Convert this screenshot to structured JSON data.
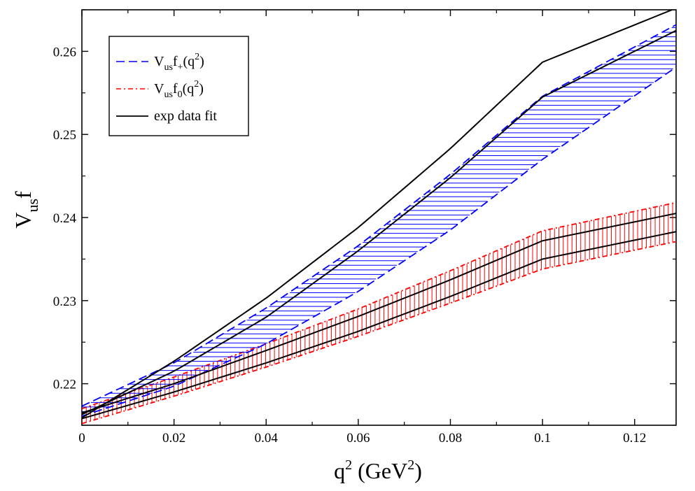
{
  "chart_data": {
    "type": "line",
    "title": "",
    "xlabel": {
      "base": "q",
      "sup": "2",
      "rest1": " (GeV",
      "sup2": "2",
      "rest2": ")"
    },
    "ylabel": {
      "base": "V",
      "sub": "us",
      "rest": "f"
    },
    "xlim": [
      0,
      0.129
    ],
    "ylim": [
      0.215,
      0.265
    ],
    "x_ticks": [
      0,
      0.02,
      0.04,
      0.06,
      0.08,
      0.1,
      0.12
    ],
    "x_tick_labels": [
      "0",
      "0.02",
      "0.04",
      "0.06",
      "0.08",
      "0.1",
      "0.12"
    ],
    "y_ticks": [
      0.22,
      0.23,
      0.24,
      0.25,
      0.26
    ],
    "y_tick_labels": [
      "0.22",
      "0.23",
      "0.24",
      "0.25",
      "0.26"
    ],
    "legend_position": "top-left",
    "x": [
      0,
      0.02,
      0.04,
      0.06,
      0.08,
      0.1,
      0.129
    ],
    "series": [
      {
        "name": "Vus f+(q2)",
        "legend": {
          "base": "V",
          "sub": "us",
          "mid": "f",
          "sub2": "+",
          "tail1": "(q",
          "sup": "2",
          "tail2": ")"
        },
        "color": "#0000ff",
        "style": "dashed",
        "hatch": "horizontal",
        "upper": [
          0.2173,
          0.2225,
          0.2291,
          0.2366,
          0.2452,
          0.2546,
          0.2632
        ],
        "lower": [
          0.2161,
          0.2197,
          0.2248,
          0.2311,
          0.2385,
          0.247,
          0.2581
        ]
      },
      {
        "name": "Vus f0(q2)",
        "legend": {
          "base": "V",
          "sub": "us",
          "mid": "f",
          "sub2": "0",
          "tail1": "(q",
          "sup": "2",
          "tail2": ")"
        },
        "color": "#ff0000",
        "style": "dash-dot",
        "hatch": "vertical",
        "upper": [
          0.217,
          0.2208,
          0.2248,
          0.229,
          0.2336,
          0.2384,
          0.2418
        ],
        "lower": [
          0.2152,
          0.2185,
          0.222,
          0.2257,
          0.2297,
          0.2338,
          0.2371
        ]
      },
      {
        "name": "exp data fit",
        "legend_text": "exp data fit",
        "color": "#000000",
        "style": "solid",
        "curves": [
          [
            0.2159,
            0.2227,
            0.2303,
            0.2388,
            0.2483,
            0.2587,
            0.2652
          ],
          [
            0.2163,
            0.2215,
            0.228,
            0.236,
            0.2448,
            0.2545,
            0.2625
          ],
          [
            0.2165,
            0.22,
            0.224,
            0.2281,
            0.2325,
            0.2372,
            0.2405
          ],
          [
            0.2158,
            0.219,
            0.2225,
            0.2263,
            0.2305,
            0.235,
            0.2383
          ]
        ]
      }
    ]
  }
}
